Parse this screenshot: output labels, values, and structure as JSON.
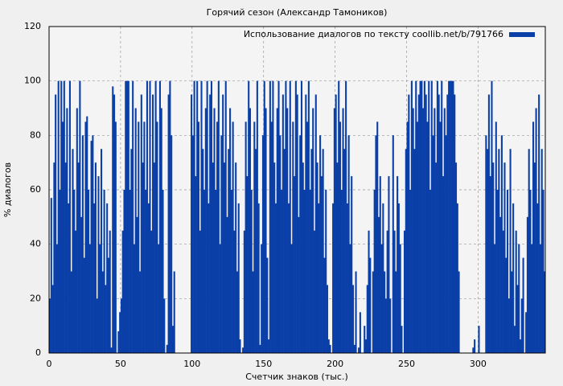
{
  "chart_data": {
    "type": "bar",
    "title": "Горячий сезон (Александр Тамоников)",
    "xlabel": "Счетчик знаков (тыс.)",
    "ylabel": "% диалогов",
    "xlim": [
      0,
      347
    ],
    "ylim": [
      0,
      120
    ],
    "xticks": [
      0,
      50,
      100,
      150,
      200,
      250,
      300
    ],
    "yticks": [
      0,
      20,
      40,
      60,
      80,
      100,
      120
    ],
    "grid": true,
    "legend": "top-right",
    "x": [
      0,
      1,
      2,
      3,
      4,
      5,
      6,
      7,
      8,
      9,
      10,
      11,
      12,
      13,
      14,
      15,
      16,
      17,
      18,
      19,
      20,
      21,
      22,
      23,
      24,
      25,
      26,
      27,
      28,
      29,
      30,
      31,
      32,
      33,
      34,
      35,
      36,
      37,
      38,
      39,
      40,
      41,
      42,
      43,
      44,
      45,
      46,
      47,
      48,
      49,
      50,
      51,
      52,
      53,
      54,
      55,
      56,
      57,
      58,
      59,
      60,
      61,
      62,
      63,
      64,
      65,
      66,
      67,
      68,
      69,
      70,
      71,
      72,
      73,
      74,
      75,
      76,
      77,
      78,
      79,
      80,
      81,
      82,
      83,
      84,
      85,
      86,
      87,
      88,
      89,
      90,
      91,
      92,
      93,
      94,
      95,
      96,
      97,
      98,
      99,
      100,
      101,
      102,
      103,
      104,
      105,
      106,
      107,
      108,
      109,
      110,
      111,
      112,
      113,
      114,
      115,
      116,
      117,
      118,
      119,
      120,
      121,
      122,
      123,
      124,
      125,
      126,
      127,
      128,
      129,
      130,
      131,
      132,
      133,
      134,
      135,
      136,
      137,
      138,
      139,
      140,
      141,
      142,
      143,
      144,
      145,
      146,
      147,
      148,
      149,
      150,
      151,
      152,
      153,
      154,
      155,
      156,
      157,
      158,
      159,
      160,
      161,
      162,
      163,
      164,
      165,
      166,
      167,
      168,
      169,
      170,
      171,
      172,
      173,
      174,
      175,
      176,
      177,
      178,
      179,
      180,
      181,
      182,
      183,
      184,
      185,
      186,
      187,
      188,
      189,
      190,
      191,
      192,
      193,
      194,
      195,
      196,
      197,
      198,
      199,
      200,
      201,
      202,
      203,
      204,
      205,
      206,
      207,
      208,
      209,
      210,
      211,
      212,
      213,
      214,
      215,
      216,
      217,
      218,
      219,
      220,
      221,
      222,
      223,
      224,
      225,
      226,
      227,
      228,
      229,
      230,
      231,
      232,
      233,
      234,
      235,
      236,
      237,
      238,
      239,
      240,
      241,
      242,
      243,
      244,
      245,
      246,
      247,
      248,
      249,
      250,
      251,
      252,
      253,
      254,
      255,
      256,
      257,
      258,
      259,
      260,
      261,
      262,
      263,
      264,
      265,
      266,
      267,
      268,
      269,
      270,
      271,
      272,
      273,
      274,
      275,
      276,
      277,
      278,
      279,
      280,
      281,
      282,
      283,
      284,
      285,
      286,
      287,
      288,
      289,
      290,
      291,
      292,
      293,
      294,
      295,
      296,
      297,
      298,
      299,
      300,
      301,
      302,
      303,
      304,
      305,
      306,
      307,
      308,
      309,
      310,
      311,
      312,
      313,
      314,
      315,
      316,
      317,
      318,
      319,
      320,
      321,
      322,
      323,
      324,
      325,
      326,
      327,
      328,
      329,
      330,
      331,
      332,
      333,
      334,
      335,
      336,
      337,
      338,
      339,
      340,
      341,
      342,
      343,
      344,
      345,
      346
    ],
    "series": [
      {
        "name": "Использование диалогов по тексту coollib.net/b/791766",
        "color": "#0a3fa8",
        "values": [
          20,
          57,
          25,
          70,
          95,
          40,
          100,
          60,
          100,
          85,
          100,
          70,
          90,
          55,
          100,
          30,
          75,
          60,
          45,
          90,
          70,
          100,
          50,
          80,
          35,
          85,
          87,
          60,
          40,
          78,
          80,
          55,
          70,
          20,
          65,
          40,
          75,
          30,
          60,
          25,
          55,
          35,
          45,
          2,
          98,
          95,
          85,
          0,
          8,
          15,
          20,
          45,
          60,
          100,
          100,
          100,
          60,
          75,
          100,
          40,
          90,
          50,
          85,
          30,
          95,
          70,
          85,
          60,
          100,
          55,
          100,
          45,
          95,
          70,
          100,
          85,
          40,
          100,
          90,
          60,
          20,
          0,
          3,
          95,
          100,
          80,
          10,
          30,
          0,
          0,
          0,
          0,
          0,
          0,
          0,
          0,
          0,
          0,
          0,
          95,
          80,
          100,
          65,
          100,
          85,
          45,
          100,
          75,
          60,
          90,
          100,
          55,
          95,
          100,
          70,
          90,
          60,
          85,
          100,
          40,
          80,
          95,
          70,
          100,
          50,
          75,
          90,
          60,
          85,
          45,
          70,
          30,
          55,
          5,
          0,
          2,
          45,
          85,
          65,
          100,
          90,
          60,
          30,
          85,
          75,
          100,
          55,
          3,
          40,
          80,
          100,
          90,
          35,
          5,
          100,
          85,
          100,
          70,
          55,
          90,
          100,
          80,
          60,
          95,
          75,
          100,
          90,
          55,
          100,
          40,
          85,
          65,
          100,
          95,
          50,
          80,
          100,
          70,
          60,
          95,
          85,
          100,
          60,
          75,
          90,
          45,
          95,
          70,
          55,
          80,
          65,
          75,
          35,
          60,
          25,
          5,
          3,
          0,
          55,
          90,
          95,
          70,
          100,
          85,
          60,
          90,
          75,
          100,
          55,
          80,
          40,
          65,
          25,
          3,
          30,
          0,
          2,
          15,
          0,
          0,
          10,
          5,
          25,
          45,
          35,
          0,
          30,
          60,
          80,
          85,
          50,
          65,
          40,
          55,
          30,
          20,
          45,
          65,
          20,
          0,
          80,
          45,
          30,
          65,
          55,
          40,
          10,
          0,
          45,
          75,
          85,
          95,
          60,
          100,
          90,
          75,
          100,
          85,
          95,
          100,
          100,
          90,
          100,
          95,
          85,
          100,
          60,
          100,
          80,
          90,
          70,
          100,
          95,
          85,
          100,
          65,
          90,
          80,
          95,
          100,
          100,
          100,
          100,
          95,
          70,
          55,
          30,
          0,
          0,
          0,
          0,
          0,
          0,
          0,
          0,
          0,
          2,
          5,
          0,
          0,
          10,
          0,
          0,
          0,
          0,
          80,
          75,
          95,
          65,
          100,
          70,
          40,
          85,
          60,
          75,
          50,
          80,
          45,
          70,
          35,
          60,
          20,
          75,
          30,
          55,
          10,
          45,
          25,
          40,
          5,
          20,
          35,
          0,
          15,
          50,
          75,
          60,
          40,
          85,
          70,
          90,
          55,
          95,
          40,
          75,
          60,
          30
        ]
      }
    ]
  }
}
